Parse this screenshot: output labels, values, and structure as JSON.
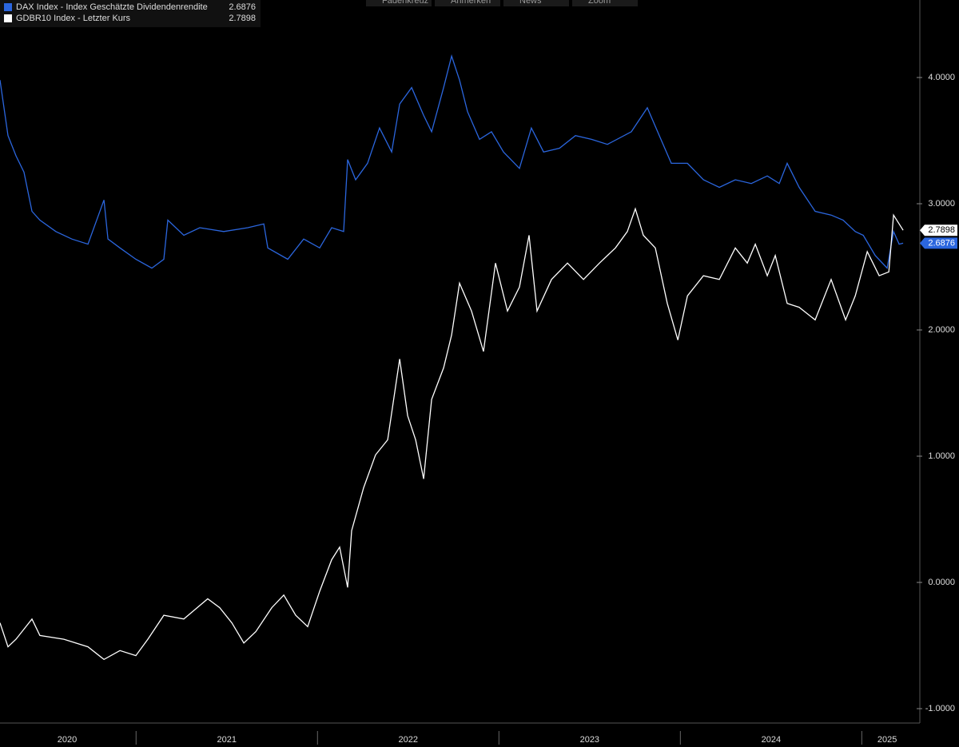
{
  "chart_data": {
    "type": "line",
    "toolbar": [
      "Fadenkreuz",
      "Anmerken",
      "News",
      "Zoom"
    ],
    "xlim": [
      2020.25,
      2025.32
    ],
    "ylim": [
      -1.114,
      4.614
    ],
    "yticks": [
      {
        "value": 4,
        "label": "4.0000"
      },
      {
        "value": 3,
        "label": "3.0000"
      },
      {
        "value": 2,
        "label": "2.0000"
      },
      {
        "value": 1,
        "label": "1.0000"
      },
      {
        "value": 0,
        "label": "0.0000"
      },
      {
        "value": -1,
        "label": "-1.0000"
      }
    ],
    "xticks": [
      {
        "value": 2020.62,
        "label": "2020"
      },
      {
        "value": 2021.5,
        "label": "2021"
      },
      {
        "value": 2022.5,
        "label": "2022"
      },
      {
        "value": 2023.5,
        "label": "2023"
      },
      {
        "value": 2024.5,
        "label": "2024"
      },
      {
        "value": 2025.14,
        "label": "2025"
      }
    ],
    "year_separators": [
      2021,
      2022,
      2023,
      2024,
      2025
    ],
    "series": [
      {
        "name": "DAX Index - Index Geschätzte Dividendenrendite",
        "color": "#2b66de",
        "last_value": 2.6876,
        "x": [
          2020.25,
          2020.294,
          2020.338,
          2020.382,
          2020.426,
          2020.47,
          2020.558,
          2020.646,
          2020.735,
          2020.823,
          2020.845,
          2020.911,
          2020.999,
          2021.087,
          2021.153,
          2021.175,
          2021.263,
          2021.351,
          2021.483,
          2021.616,
          2021.704,
          2021.726,
          2021.836,
          2021.924,
          2022.012,
          2022.078,
          2022.144,
          2022.166,
          2022.21,
          2022.276,
          2022.342,
          2022.409,
          2022.453,
          2022.519,
          2022.585,
          2022.629,
          2022.695,
          2022.739,
          2022.783,
          2022.827,
          2022.893,
          2022.959,
          2023.025,
          2023.113,
          2023.179,
          2023.246,
          2023.334,
          2023.422,
          2023.51,
          2023.598,
          2023.73,
          2023.818,
          2023.884,
          2023.95,
          2024.039,
          2024.127,
          2024.215,
          2024.303,
          2024.391,
          2024.479,
          2024.545,
          2024.589,
          2024.655,
          2024.743,
          2024.831,
          2024.897,
          2024.964,
          2025.008,
          2025.074,
          2025.14,
          2025.175,
          2025.206,
          2025.228
        ],
        "values": [
          3.98,
          3.54,
          3.38,
          3.25,
          2.94,
          2.87,
          2.78,
          2.72,
          2.68,
          3.03,
          2.72,
          2.65,
          2.56,
          2.49,
          2.56,
          2.87,
          2.75,
          2.81,
          2.78,
          2.81,
          2.84,
          2.65,
          2.56,
          2.72,
          2.65,
          2.81,
          2.78,
          3.35,
          3.19,
          3.32,
          3.6,
          3.41,
          3.79,
          3.92,
          3.7,
          3.57,
          3.92,
          4.17,
          3.98,
          3.73,
          3.51,
          3.57,
          3.41,
          3.28,
          3.6,
          3.41,
          3.44,
          3.54,
          3.51,
          3.47,
          3.57,
          3.76,
          3.54,
          3.32,
          3.32,
          3.19,
          3.13,
          3.19,
          3.16,
          3.22,
          3.16,
          3.32,
          3.13,
          2.94,
          2.91,
          2.87,
          2.78,
          2.75,
          2.59,
          2.49,
          2.78,
          2.68,
          2.6876
        ]
      },
      {
        "name": "GDBR10 Index - Letzter Kurs",
        "color": "#ffffff",
        "last_value": 2.7898,
        "x": [
          2020.25,
          2020.294,
          2020.338,
          2020.426,
          2020.47,
          2020.602,
          2020.735,
          2020.823,
          2020.911,
          2020.999,
          2021.065,
          2021.153,
          2021.263,
          2021.395,
          2021.461,
          2021.528,
          2021.594,
          2021.66,
          2021.748,
          2021.814,
          2021.88,
          2021.946,
          2022.012,
          2022.078,
          2022.122,
          2022.166,
          2022.188,
          2022.254,
          2022.32,
          2022.387,
          2022.453,
          2022.497,
          2022.541,
          2022.585,
          2022.629,
          2022.695,
          2022.739,
          2022.783,
          2022.849,
          2022.915,
          2022.981,
          2023.047,
          2023.113,
          2023.166,
          2023.21,
          2023.29,
          2023.378,
          2023.466,
          2023.554,
          2023.642,
          2023.708,
          2023.752,
          2023.796,
          2023.862,
          2023.928,
          2023.986,
          2024.039,
          2024.127,
          2024.215,
          2024.303,
          2024.369,
          2024.413,
          2024.479,
          2024.523,
          2024.589,
          2024.655,
          2024.743,
          2024.831,
          2024.911,
          2024.964,
          2025.03,
          2025.096,
          2025.149,
          2025.175,
          2025.228
        ],
        "values": [
          -0.32,
          -0.51,
          -0.45,
          -0.29,
          -0.42,
          -0.45,
          -0.51,
          -0.61,
          -0.54,
          -0.58,
          -0.45,
          -0.26,
          -0.29,
          -0.13,
          -0.2,
          -0.32,
          -0.48,
          -0.39,
          -0.2,
          -0.1,
          -0.26,
          -0.35,
          -0.07,
          0.18,
          0.28,
          -0.04,
          0.41,
          0.75,
          1.01,
          1.13,
          1.77,
          1.32,
          1.13,
          0.82,
          1.45,
          1.7,
          1.96,
          2.37,
          2.15,
          1.83,
          2.53,
          2.15,
          2.34,
          2.75,
          2.15,
          2.4,
          2.53,
          2.4,
          2.53,
          2.65,
          2.78,
          2.96,
          2.75,
          2.65,
          2.21,
          1.92,
          2.27,
          2.43,
          2.4,
          2.65,
          2.53,
          2.68,
          2.43,
          2.59,
          2.21,
          2.18,
          2.08,
          2.4,
          2.08,
          2.27,
          2.62,
          2.43,
          2.46,
          2.91,
          2.7898
        ]
      }
    ]
  }
}
